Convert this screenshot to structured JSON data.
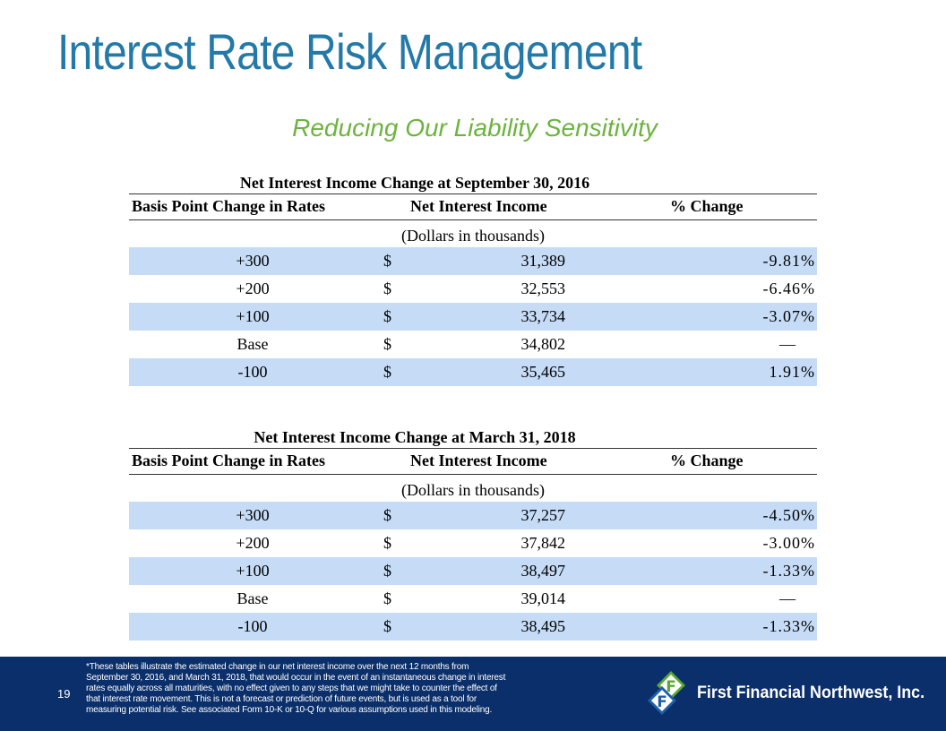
{
  "title": "Interest Rate Risk Management",
  "subtitle": "Reducing Our Liability Sensitivity",
  "tables": [
    {
      "caption": "Net Interest Income Change at September 30, 2016",
      "headers": [
        "Basis Point Change in Rates",
        "Net Interest Income",
        "% Change"
      ],
      "units": "(Dollars in thousands)",
      "rows": [
        {
          "change": "+300",
          "currency": "$",
          "income": "31,389",
          "pct": "-9.81%"
        },
        {
          "change": "+200",
          "currency": "$",
          "income": "32,553",
          "pct": "-6.46%"
        },
        {
          "change": "+100",
          "currency": "$",
          "income": "33,734",
          "pct": "-3.07%"
        },
        {
          "change": "Base",
          "currency": "$",
          "income": "34,802",
          "pct": "—"
        },
        {
          "change": "-100",
          "currency": "$",
          "income": "35,465",
          "pct": "1.91%"
        }
      ]
    },
    {
      "caption": "Net Interest Income Change at March 31, 2018",
      "headers": [
        "Basis Point Change in Rates",
        "Net Interest Income",
        "% Change"
      ],
      "units": "(Dollars in thousands)",
      "rows": [
        {
          "change": "+300",
          "currency": "$",
          "income": "37,257",
          "pct": "-4.50%"
        },
        {
          "change": "+200",
          "currency": "$",
          "income": "37,842",
          "pct": "-3.00%"
        },
        {
          "change": "+100",
          "currency": "$",
          "income": "38,497",
          "pct": "-1.33%"
        },
        {
          "change": "Base",
          "currency": "$",
          "income": "39,014",
          "pct": "—"
        },
        {
          "change": "-100",
          "currency": "$",
          "income": "38,495",
          "pct": "-1.33%"
        }
      ]
    }
  ],
  "footer": {
    "page_number": "19",
    "footnote_lines": [
      "*These tables illustrate the estimated change in our net interest income over the next 12 months from",
      "September 30, 2016, and March 31, 2018, that would occur in the event of an instantaneous change in interest",
      "rates equally across all maturities, with no effect given to any steps that we might take to counter the effect of",
      "that interest rate movement. This is not a forecast or prediction of future events, but is used as a tool for",
      "measuring potential risk. See associated Form 10-K or 10-Q for various assumptions used in this modeling."
    ],
    "company_name": "First Financial Northwest, Inc.",
    "logo_icon": "first-financial-logo-icon"
  },
  "colors": {
    "title": "#2379a8",
    "subtitle": "#6cb33f",
    "row_shade": "#c5dbf6",
    "footer_band": "#0b2f6a",
    "logo_green": "#5aa832",
    "logo_blue": "#1f5fa8"
  }
}
